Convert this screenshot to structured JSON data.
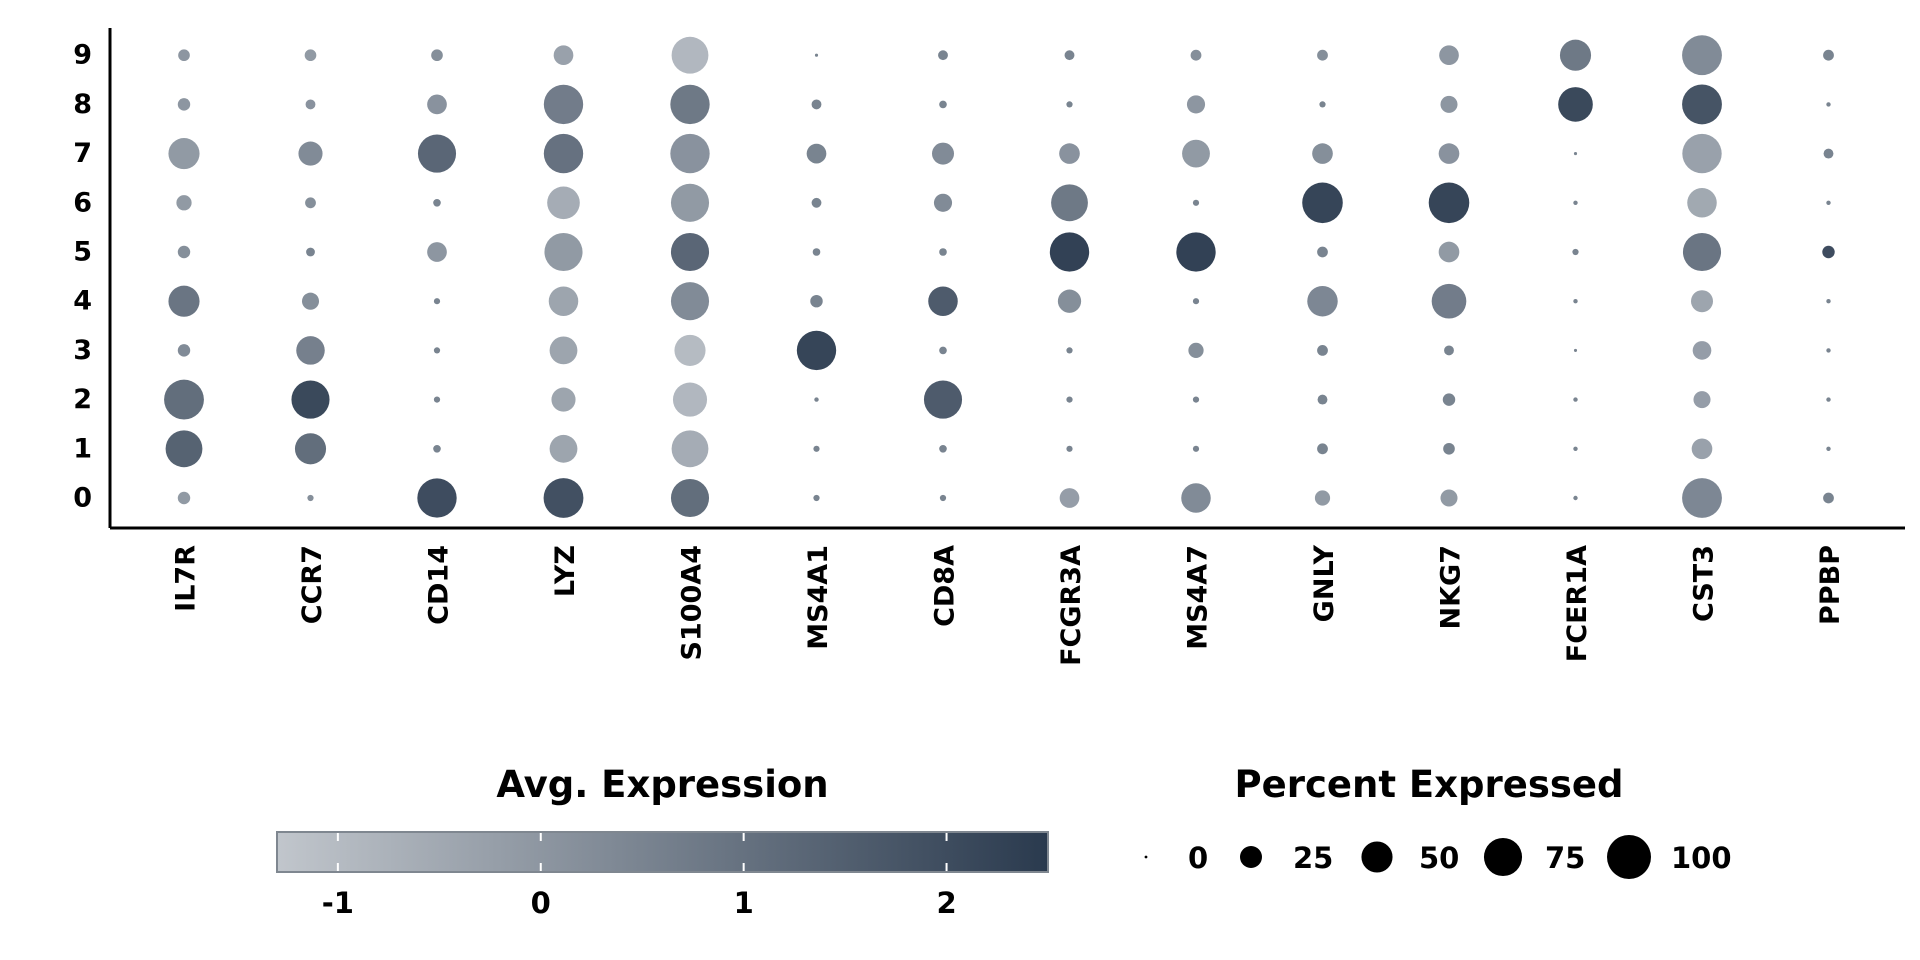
{
  "chart_data": {
    "type": "scatter",
    "subtype": "dot plot",
    "genes": [
      "IL7R",
      "CCR7",
      "CD14",
      "LYZ",
      "S100A4",
      "MS4A1",
      "CD8A",
      "FCGR3A",
      "MS4A7",
      "GNLY",
      "NKG7",
      "FCER1A",
      "CST3",
      "PPBP"
    ],
    "clusters": [
      "0",
      "1",
      "2",
      "3",
      "4",
      "5",
      "6",
      "7",
      "8",
      "9"
    ],
    "pct_expressed": [
      [
        8,
        2,
        80,
        82,
        75,
        2,
        2,
        20,
        45,
        12,
        15,
        1,
        82,
        6
      ],
      [
        70,
        50,
        3,
        40,
        70,
        2,
        3,
        2,
        2,
        6,
        7,
        1,
        22,
        1
      ],
      [
        82,
        75,
        2,
        30,
        60,
        1,
        75,
        2,
        2,
        5,
        8,
        1,
        15,
        1
      ],
      [
        8,
        42,
        2,
        40,
        50,
        80,
        3,
        2,
        12,
        6,
        5,
        0.5,
        18,
        1
      ],
      [
        50,
        15,
        2,
        45,
        75,
        8,
        45,
        28,
        2,
        48,
        62,
        1,
        25,
        1
      ],
      [
        8,
        4,
        20,
        75,
        75,
        3,
        3,
        80,
        80,
        6,
        22,
        2,
        75,
        8
      ],
      [
        12,
        6,
        3,
        55,
        75,
        5,
        17,
        70,
        2,
        85,
        85,
        1,
        45,
        1
      ],
      [
        50,
        30,
        75,
        80,
        80,
        20,
        25,
        22,
        40,
        22,
        22,
        0.5,
        80,
        5
      ],
      [
        8,
        5,
        20,
        80,
        80,
        5,
        3,
        2,
        17,
        2,
        15,
        62,
        82,
        1
      ],
      [
        7,
        7,
        7,
        20,
        70,
        0.5,
        5,
        5,
        6,
        6,
        20,
        50,
        82,
        6
      ]
    ],
    "avg_expression": [
      [
        -0.1,
        0.2,
        2.0,
        1.9,
        1.1,
        0.5,
        0.5,
        -0.2,
        0.3,
        -0.1,
        -0.1,
        0.5,
        0.4,
        0.5
      ],
      [
        1.4,
        1.1,
        0.5,
        -0.4,
        -0.6,
        0.5,
        0.5,
        0.5,
        0.5,
        0.5,
        0.5,
        0.5,
        -0.3,
        0.5
      ],
      [
        1.1,
        2.1,
        0.5,
        -0.4,
        -0.9,
        0.5,
        1.6,
        0.5,
        0.5,
        0.5,
        0.5,
        0.5,
        -0.2,
        0.5
      ],
      [
        0.3,
        0.6,
        0.5,
        -0.4,
        -1.0,
        2.2,
        0.5,
        0.5,
        0.2,
        0.5,
        0.5,
        0.5,
        -0.2,
        0.5
      ],
      [
        0.9,
        0.2,
        0.5,
        -0.4,
        0.3,
        0.5,
        1.6,
        0.2,
        0.5,
        0.4,
        0.7,
        0.5,
        -0.4,
        0.5
      ],
      [
        0.2,
        0.5,
        0.0,
        -0.1,
        1.3,
        0.5,
        0.5,
        2.3,
        2.3,
        0.5,
        -0.1,
        0.5,
        0.9,
        2.0
      ],
      [
        -0.1,
        0.2,
        0.5,
        -0.6,
        -0.1,
        0.5,
        0.3,
        0.8,
        0.5,
        2.2,
        2.2,
        0.5,
        -0.5,
        0.5
      ],
      [
        -0.1,
        0.3,
        1.3,
        1.0,
        0.1,
        0.5,
        0.3,
        0.1,
        -0.1,
        0.2,
        0.1,
        0.5,
        -0.3,
        0.5
      ],
      [
        0.0,
        0.1,
        0.1,
        0.7,
        0.8,
        0.5,
        0.5,
        0.5,
        0.0,
        0.5,
        0.0,
        2.1,
        1.8,
        0.5
      ],
      [
        0.0,
        -0.1,
        0.2,
        -0.3,
        -0.9,
        0.5,
        0.5,
        0.5,
        0.2,
        0.2,
        0.0,
        0.8,
        0.3,
        0.5
      ]
    ],
    "color_scale": {
      "min": -1.3,
      "max": 2.5,
      "low_color": "#c1c6cc",
      "high_color": "#2a3a4e",
      "ticks": [
        "-1",
        "0",
        "1",
        "2"
      ],
      "tick_values": [
        -1,
        0,
        1,
        2
      ]
    },
    "size_scale": {
      "ticks": [
        "0",
        "25",
        "50",
        "75",
        "100"
      ],
      "tick_values": [
        0,
        25,
        50,
        75,
        100
      ]
    },
    "legend": {
      "color_title": "Avg. Expression",
      "size_title": "Percent Expressed",
      "placement": "bottom"
    },
    "xlabel": "",
    "ylabel": "",
    "grid": false
  }
}
